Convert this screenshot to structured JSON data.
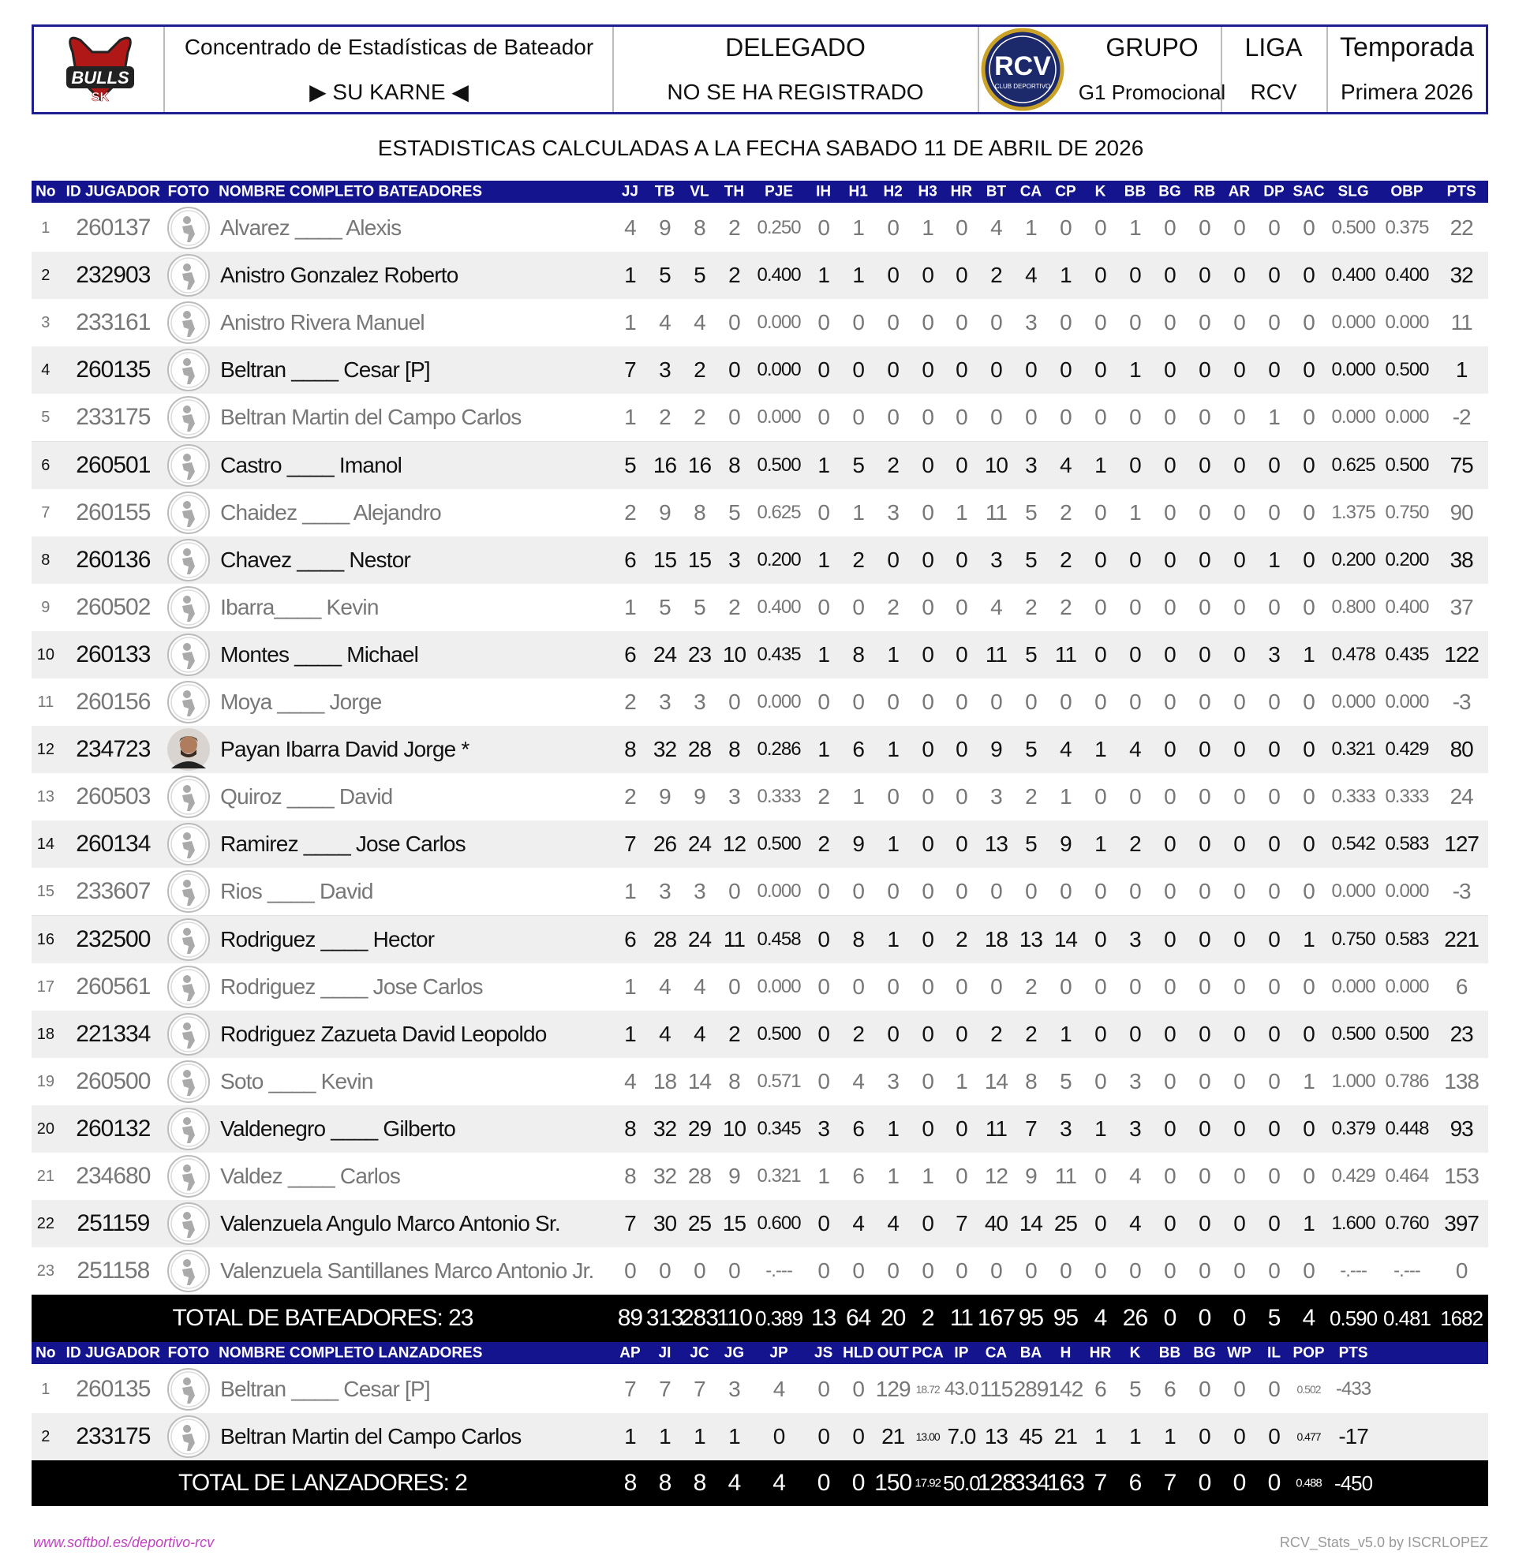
{
  "header": {
    "team_logo_top": "BULLS",
    "team_logo_bottom": "SK",
    "title": "Concentrado de Estadísticas de Bateador",
    "team": "▶ SU KARNE ◀",
    "delegado_label": "DELEGADO",
    "delegado_value": "NO SE HA REGISTRADO",
    "league_logo": "RCV",
    "league_logo_sub": "CLUB DEPORTIVO",
    "grupo_label": "GRUPO",
    "grupo_value": "G1 Promocional",
    "liga_label": "LIGA",
    "liga_value": "RCV",
    "temporada_label": "Temporada",
    "temporada_value": "Primera 2026"
  },
  "subtitle": "ESTADISTICAS CALCULADAS A LA FECHA SABADO 11 DE ABRIL DE 2026",
  "batting": {
    "columns": [
      "No",
      "ID JUGADOR",
      "FOTO",
      "NOMBRE COMPLETO BATEADORES",
      "JJ",
      "TB",
      "VL",
      "TH",
      "PJE",
      "IH",
      "H1",
      "H2",
      "H3",
      "HR",
      "BT",
      "CA",
      "CP",
      "K",
      "BB",
      "BG",
      "RB",
      "AR",
      "DP",
      "SAC",
      "SLG",
      "OBP",
      "PTS"
    ],
    "rows": [
      [
        "1",
        "260137",
        "Alvarez ____ Alexis",
        "4",
        "9",
        "8",
        "2",
        "0.250",
        "0",
        "1",
        "0",
        "1",
        "0",
        "4",
        "1",
        "0",
        "0",
        "1",
        "0",
        "0",
        "0",
        "0",
        "0",
        "0.500",
        "0.375",
        "22"
      ],
      [
        "2",
        "232903",
        "Anistro Gonzalez Roberto",
        "1",
        "5",
        "5",
        "2",
        "0.400",
        "1",
        "1",
        "0",
        "0",
        "0",
        "2",
        "4",
        "1",
        "0",
        "0",
        "0",
        "0",
        "0",
        "0",
        "0",
        "0.400",
        "0.400",
        "32"
      ],
      [
        "3",
        "233161",
        "Anistro Rivera Manuel",
        "1",
        "4",
        "4",
        "0",
        "0.000",
        "0",
        "0",
        "0",
        "0",
        "0",
        "0",
        "3",
        "0",
        "0",
        "0",
        "0",
        "0",
        "0",
        "0",
        "0",
        "0.000",
        "0.000",
        "11"
      ],
      [
        "4",
        "260135",
        "Beltran ____ Cesar [P]",
        "7",
        "3",
        "2",
        "0",
        "0.000",
        "0",
        "0",
        "0",
        "0",
        "0",
        "0",
        "0",
        "0",
        "0",
        "1",
        "0",
        "0",
        "0",
        "0",
        "0",
        "0.000",
        "0.500",
        "1"
      ],
      [
        "5",
        "233175",
        "Beltran Martin del Campo Carlos",
        "1",
        "2",
        "2",
        "0",
        "0.000",
        "0",
        "0",
        "0",
        "0",
        "0",
        "0",
        "0",
        "0",
        "0",
        "0",
        "0",
        "0",
        "0",
        "1",
        "0",
        "0.000",
        "0.000",
        "-2"
      ],
      [
        "6",
        "260501",
        "Castro ____ Imanol",
        "5",
        "16",
        "16",
        "8",
        "0.500",
        "1",
        "5",
        "2",
        "0",
        "0",
        "10",
        "3",
        "4",
        "1",
        "0",
        "0",
        "0",
        "0",
        "0",
        "0",
        "0.625",
        "0.500",
        "75"
      ],
      [
        "7",
        "260155",
        "Chaidez ____ Alejandro",
        "2",
        "9",
        "8",
        "5",
        "0.625",
        "0",
        "1",
        "3",
        "0",
        "1",
        "11",
        "5",
        "2",
        "0",
        "1",
        "0",
        "0",
        "0",
        "0",
        "0",
        "1.375",
        "0.750",
        "90"
      ],
      [
        "8",
        "260136",
        "Chavez ____ Nestor",
        "6",
        "15",
        "15",
        "3",
        "0.200",
        "1",
        "2",
        "0",
        "0",
        "0",
        "3",
        "5",
        "2",
        "0",
        "0",
        "0",
        "0",
        "0",
        "1",
        "0",
        "0.200",
        "0.200",
        "38"
      ],
      [
        "9",
        "260502",
        "Ibarra____ Kevin",
        "1",
        "5",
        "5",
        "2",
        "0.400",
        "0",
        "0",
        "2",
        "0",
        "0",
        "4",
        "2",
        "2",
        "0",
        "0",
        "0",
        "0",
        "0",
        "0",
        "0",
        "0.800",
        "0.400",
        "37"
      ],
      [
        "10",
        "260133",
        "Montes ____ Michael",
        "6",
        "24",
        "23",
        "10",
        "0.435",
        "1",
        "8",
        "1",
        "0",
        "0",
        "11",
        "5",
        "11",
        "0",
        "0",
        "0",
        "0",
        "0",
        "3",
        "1",
        "0.478",
        "0.435",
        "122"
      ],
      [
        "11",
        "260156",
        "Moya ____ Jorge",
        "2",
        "3",
        "3",
        "0",
        "0.000",
        "0",
        "0",
        "0",
        "0",
        "0",
        "0",
        "0",
        "0",
        "0",
        "0",
        "0",
        "0",
        "0",
        "0",
        "0",
        "0.000",
        "0.000",
        "-3"
      ],
      [
        "12",
        "234723",
        "Payan Ibarra David Jorge *",
        "8",
        "32",
        "28",
        "8",
        "0.286",
        "1",
        "6",
        "1",
        "0",
        "0",
        "9",
        "5",
        "4",
        "1",
        "4",
        "0",
        "0",
        "0",
        "0",
        "0",
        "0.321",
        "0.429",
        "80"
      ],
      [
        "13",
        "260503",
        "Quiroz ____ David",
        "2",
        "9",
        "9",
        "3",
        "0.333",
        "2",
        "1",
        "0",
        "0",
        "0",
        "3",
        "2",
        "1",
        "0",
        "0",
        "0",
        "0",
        "0",
        "0",
        "0",
        "0.333",
        "0.333",
        "24"
      ],
      [
        "14",
        "260134",
        "Ramirez ____ Jose Carlos",
        "7",
        "26",
        "24",
        "12",
        "0.500",
        "2",
        "9",
        "1",
        "0",
        "0",
        "13",
        "5",
        "9",
        "1",
        "2",
        "0",
        "0",
        "0",
        "0",
        "0",
        "0.542",
        "0.583",
        "127"
      ],
      [
        "15",
        "233607",
        "Rios ____ David",
        "1",
        "3",
        "3",
        "0",
        "0.000",
        "0",
        "0",
        "0",
        "0",
        "0",
        "0",
        "0",
        "0",
        "0",
        "0",
        "0",
        "0",
        "0",
        "0",
        "0",
        "0.000",
        "0.000",
        "-3"
      ],
      [
        "16",
        "232500",
        "Rodriguez ____ Hector",
        "6",
        "28",
        "24",
        "11",
        "0.458",
        "0",
        "8",
        "1",
        "0",
        "2",
        "18",
        "13",
        "14",
        "0",
        "3",
        "0",
        "0",
        "0",
        "0",
        "1",
        "0.750",
        "0.583",
        "221"
      ],
      [
        "17",
        "260561",
        "Rodriguez ____ Jose Carlos",
        "1",
        "4",
        "4",
        "0",
        "0.000",
        "0",
        "0",
        "0",
        "0",
        "0",
        "0",
        "2",
        "0",
        "0",
        "0",
        "0",
        "0",
        "0",
        "0",
        "0",
        "0.000",
        "0.000",
        "6"
      ],
      [
        "18",
        "221334",
        "Rodriguez Zazueta David Leopoldo",
        "1",
        "4",
        "4",
        "2",
        "0.500",
        "0",
        "2",
        "0",
        "0",
        "0",
        "2",
        "2",
        "1",
        "0",
        "0",
        "0",
        "0",
        "0",
        "0",
        "0",
        "0.500",
        "0.500",
        "23"
      ],
      [
        "19",
        "260500",
        "Soto ____ Kevin",
        "4",
        "18",
        "14",
        "8",
        "0.571",
        "0",
        "4",
        "3",
        "0",
        "1",
        "14",
        "8",
        "5",
        "0",
        "3",
        "0",
        "0",
        "0",
        "0",
        "1",
        "1.000",
        "0.786",
        "138"
      ],
      [
        "20",
        "260132",
        "Valdenegro ____ Gilberto",
        "8",
        "32",
        "29",
        "10",
        "0.345",
        "3",
        "6",
        "1",
        "0",
        "0",
        "11",
        "7",
        "3",
        "1",
        "3",
        "0",
        "0",
        "0",
        "0",
        "0",
        "0.379",
        "0.448",
        "93"
      ],
      [
        "21",
        "234680",
        "Valdez ____ Carlos",
        "8",
        "32",
        "28",
        "9",
        "0.321",
        "1",
        "6",
        "1",
        "1",
        "0",
        "12",
        "9",
        "11",
        "0",
        "4",
        "0",
        "0",
        "0",
        "0",
        "0",
        "0.429",
        "0.464",
        "153"
      ],
      [
        "22",
        "251159",
        "Valenzuela Angulo Marco Antonio Sr.",
        "7",
        "30",
        "25",
        "15",
        "0.600",
        "0",
        "4",
        "4",
        "0",
        "7",
        "40",
        "14",
        "25",
        "0",
        "4",
        "0",
        "0",
        "0",
        "0",
        "1",
        "1.600",
        "0.760",
        "397"
      ],
      [
        "23",
        "251158",
        "Valenzuela Santillanes Marco Antonio Jr.",
        "0",
        "0",
        "0",
        "0",
        "-.---",
        "0",
        "0",
        "0",
        "0",
        "0",
        "0",
        "0",
        "0",
        "0",
        "0",
        "0",
        "0",
        "0",
        "0",
        "0",
        "-.---",
        "-.---",
        "0"
      ]
    ],
    "total": {
      "label": "TOTAL DE BATEADORES: 23",
      "values": [
        "89",
        "313",
        "283",
        "110",
        "0.389",
        "13",
        "64",
        "20",
        "2",
        "11",
        "167",
        "95",
        "95",
        "4",
        "26",
        "0",
        "0",
        "0",
        "5",
        "4",
        "0.590",
        "0.481",
        "1682"
      ]
    }
  },
  "pitching": {
    "columns": [
      "No",
      "ID JUGADOR",
      "FOTO",
      "NOMBRE COMPLETO LANZADORES",
      "AP",
      "JI",
      "JC",
      "JG",
      "JP",
      "JS",
      "HLD",
      "OUT",
      "PCA",
      "IP",
      "CA",
      "BA",
      "H",
      "HR",
      "K",
      "BB",
      "BG",
      "WP",
      "IL",
      "POP",
      "PTS"
    ],
    "rows": [
      [
        "1",
        "260135",
        "Beltran ____ Cesar [P]",
        "7",
        "7",
        "7",
        "3",
        "4",
        "0",
        "0",
        "129",
        "18.72",
        "43.0",
        "115",
        "289",
        "142",
        "6",
        "5",
        "6",
        "0",
        "0",
        "0",
        "0.502",
        "-433"
      ],
      [
        "2",
        "233175",
        "Beltran Martin del Campo Carlos",
        "1",
        "1",
        "1",
        "1",
        "0",
        "0",
        "0",
        "21",
        "13.00",
        "7.0",
        "13",
        "45",
        "21",
        "1",
        "1",
        "1",
        "0",
        "0",
        "0",
        "0.477",
        "-17"
      ]
    ],
    "total": {
      "label": "TOTAL DE LANZADORES: 2",
      "values": [
        "8",
        "8",
        "8",
        "4",
        "4",
        "0",
        "0",
        "150",
        "17.92",
        "50.0",
        "128",
        "334",
        "163",
        "7",
        "6",
        "7",
        "0",
        "0",
        "0",
        "0.488",
        "-450"
      ]
    }
  },
  "footer": {
    "left": "www.softbol.es/deportivo-rcv",
    "right": "RCV_Stats_v5.0 by ISCRLOPEZ"
  }
}
